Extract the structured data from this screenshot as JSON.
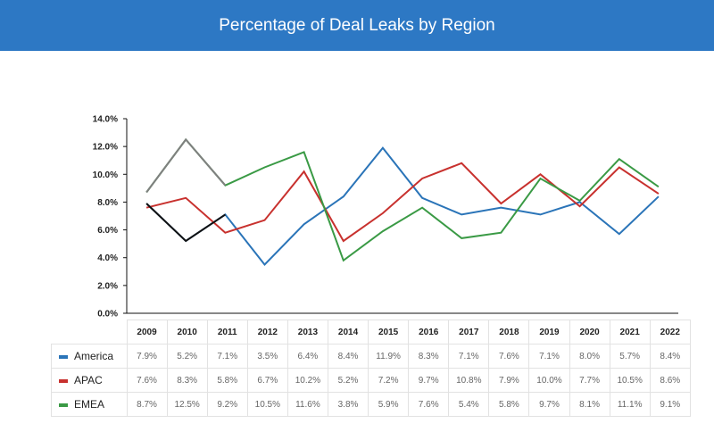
{
  "header": {
    "title": "Percentage of Deal Leaks by Region"
  },
  "colors": {
    "banner": "#2d78c4",
    "America": "#2a74b8",
    "APAC": "#c8312e",
    "EMEA": "#3a9a45",
    "early_top": "#808080",
    "early_mid": "#111111"
  },
  "chart_data": {
    "type": "line",
    "title": "Percentage of Deal Leaks by Region",
    "categories": [
      "2009",
      "2010",
      "2011",
      "2012",
      "2013",
      "2014",
      "2015",
      "2016",
      "2017",
      "2018",
      "2019",
      "2020",
      "2021",
      "2022"
    ],
    "ylim": [
      0,
      14
    ],
    "yticks": [
      "0.0%",
      "2.0%",
      "4.0%",
      "6.0%",
      "8.0%",
      "10.0%",
      "12.0%",
      "14.0%"
    ],
    "series": [
      {
        "name": "America",
        "values": [
          7.9,
          5.2,
          7.1,
          3.5,
          6.4,
          8.4,
          11.9,
          8.3,
          7.1,
          7.6,
          7.1,
          8.0,
          5.7,
          8.4
        ],
        "labels": [
          "7.9%",
          "5.2%",
          "7.1%",
          "3.5%",
          "6.4%",
          "8.4%",
          "11.9%",
          "8.3%",
          "7.1%",
          "7.6%",
          "7.1%",
          "8.0%",
          "5.7%",
          "8.4%"
        ]
      },
      {
        "name": "APAC",
        "values": [
          7.6,
          8.3,
          5.8,
          6.7,
          10.2,
          5.2,
          7.2,
          9.7,
          10.8,
          7.9,
          10.0,
          7.7,
          10.5,
          8.6
        ],
        "labels": [
          "7.6%",
          "8.3%",
          "5.8%",
          "6.7%",
          "10.2%",
          "5.2%",
          "7.2%",
          "9.7%",
          "10.8%",
          "7.9%",
          "10.0%",
          "7.7%",
          "10.5%",
          "8.6%"
        ]
      },
      {
        "name": "EMEA",
        "values": [
          8.7,
          12.5,
          9.2,
          10.5,
          11.6,
          3.8,
          5.9,
          7.6,
          5.4,
          5.8,
          9.7,
          8.1,
          11.1,
          9.1
        ],
        "labels": [
          "8.7%",
          "12.5%",
          "9.2%",
          "10.5%",
          "11.6%",
          "3.8%",
          "5.9%",
          "7.6%",
          "5.4%",
          "5.8%",
          "9.7%",
          "8.1%",
          "11.1%",
          "9.1%"
        ]
      }
    ]
  }
}
